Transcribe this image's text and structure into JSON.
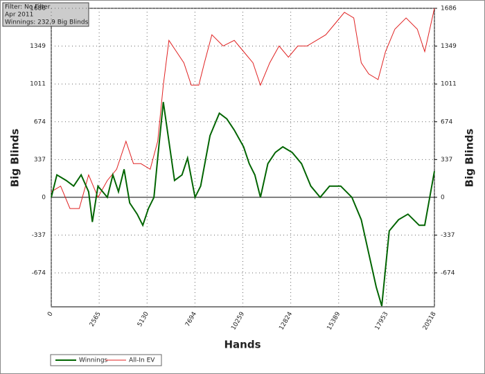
{
  "chart_data": {
    "type": "line",
    "annotations": [
      "Filter: No Filter",
      "Apr 2011",
      "Winnings: 232,9 Big Blinds"
    ],
    "ylabel": "Big Blinds",
    "y2label": "Big Blinds",
    "xlabel": "Hands",
    "xlim": [
      0,
      20518
    ],
    "xticks": [
      0,
      2565,
      5130,
      7694,
      10259,
      12824,
      15389,
      17953,
      20518
    ],
    "ylim": [
      -977,
      1686
    ],
    "yticks": [
      -674,
      -337,
      0,
      337,
      674,
      1011,
      1349,
      1686
    ],
    "y2lim": [
      -977,
      1686
    ],
    "y2ticks": [
      -674,
      -337,
      0,
      337,
      674,
      1011,
      1349,
      1686
    ],
    "grid": true,
    "legend": "bottom-left",
    "series": [
      {
        "name": "Winnings",
        "color": "#006400",
        "x": [
          0,
          300,
          800,
          1200,
          1600,
          2000,
          2200,
          2500,
          3000,
          3300,
          3600,
          3900,
          4200,
          4600,
          4900,
          5200,
          5500,
          5700,
          6000,
          6300,
          6600,
          7000,
          7300,
          7700,
          8000,
          8500,
          9000,
          9400,
          9800,
          10300,
          10600,
          10900,
          11200,
          11600,
          12000,
          12400,
          12900,
          13400,
          13900,
          14400,
          14900,
          15500,
          16100,
          16600,
          17000,
          17400,
          17700,
          18100,
          18600,
          19100,
          19700,
          20000,
          20518
        ],
        "values": [
          0,
          200,
          150,
          100,
          200,
          50,
          -220,
          100,
          0,
          200,
          50,
          250,
          -50,
          -150,
          -250,
          -100,
          0,
          350,
          850,
          500,
          150,
          200,
          350,
          0,
          100,
          550,
          750,
          700,
          600,
          450,
          300,
          200,
          0,
          300,
          400,
          450,
          400,
          300,
          100,
          0,
          100,
          100,
          0,
          -200,
          -500,
          -800,
          -970,
          -300,
          -200,
          -150,
          -250,
          -250,
          233
        ]
      },
      {
        "name": "All-In EV",
        "color": "#e02020",
        "x": [
          0,
          500,
          1000,
          1500,
          2000,
          2500,
          3000,
          3500,
          4000,
          4400,
          4800,
          5300,
          5700,
          6000,
          6300,
          6700,
          7100,
          7500,
          7900,
          8200,
          8600,
          9200,
          9800,
          10300,
          10800,
          11200,
          11700,
          12200,
          12700,
          13200,
          13700,
          14200,
          14700,
          15200,
          15700,
          16200,
          16600,
          17000,
          17500,
          17900,
          18400,
          19000,
          19600,
          20000,
          20518
        ],
        "values": [
          50,
          100,
          -100,
          -100,
          200,
          0,
          150,
          250,
          500,
          300,
          300,
          250,
          500,
          1000,
          1400,
          1300,
          1200,
          1000,
          1000,
          1200,
          1450,
          1350,
          1400,
          1300,
          1200,
          1000,
          1200,
          1350,
          1250,
          1350,
          1350,
          1400,
          1450,
          1550,
          1650,
          1600,
          1200,
          1100,
          1050,
          1300,
          1500,
          1600,
          1500,
          1300,
          1686
        ]
      }
    ]
  }
}
